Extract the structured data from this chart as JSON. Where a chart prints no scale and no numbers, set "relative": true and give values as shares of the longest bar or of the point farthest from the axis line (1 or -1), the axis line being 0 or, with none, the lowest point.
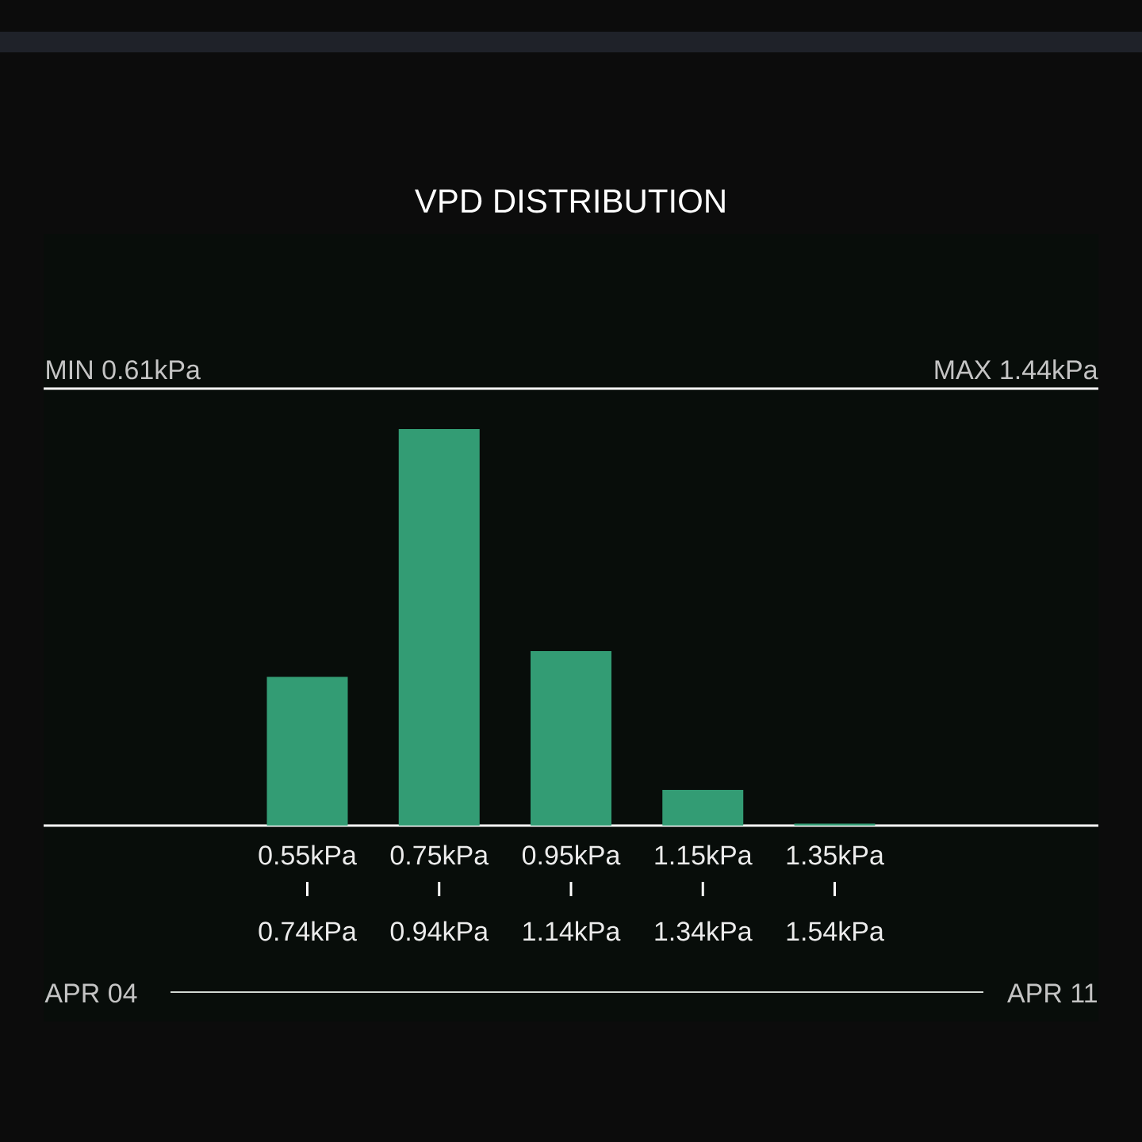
{
  "chart_data": {
    "type": "bar",
    "title": "VPD DISTRIBUTION",
    "categories": [
      "0.55kPa 0.74kPa",
      "0.75kPa 0.94kPa",
      "0.95kPa 1.14kPa",
      "1.15kPa 1.34kPa",
      "1.35kPa 1.54kPa"
    ],
    "values": [
      0.375,
      1,
      0.44,
      0.09,
      0.005
    ],
    "relative": true,
    "color": "#339c74",
    "annotations": [
      "MIN 0.61kPa",
      "MAX 1.44kPa",
      "APR 04",
      "APR 11"
    ]
  }
}
